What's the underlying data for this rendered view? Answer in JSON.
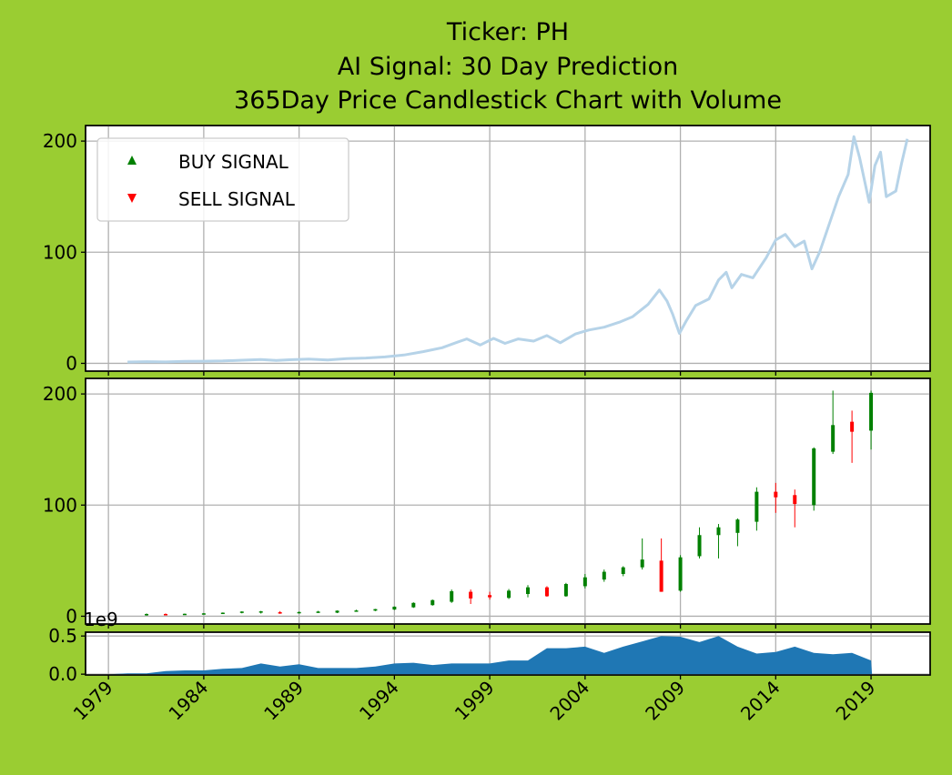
{
  "chart_data": {
    "type": "candlestick",
    "title_lines": [
      "Ticker: PH",
      "AI Signal: 30 Day Prediction",
      "365Day Price Candlestick Chart with Volume"
    ],
    "legend": {
      "placement": "upper-left",
      "entries": [
        {
          "label": "BUY SIGNAL",
          "marker": "up-triangle",
          "color": "#008000"
        },
        {
          "label": "SELL SIGNAL",
          "marker": "down-triangle",
          "color": "#ff0000"
        }
      ]
    },
    "colors": {
      "price_line": "#b6d3e8",
      "up": "#008000",
      "down": "#ff0000",
      "volume": "#1f77b4"
    },
    "grid": true,
    "xlim": [
      1977.8,
      2022.1
    ],
    "x_ticks": [
      "1979",
      "1984",
      "1989",
      "1994",
      "1999",
      "2004",
      "2009",
      "2014",
      "2019"
    ],
    "price_panel": {
      "ylim": [
        -7,
        214
      ],
      "y_ticks": [
        "0",
        "100",
        "200"
      ]
    },
    "volume_panel": {
      "ylim": [
        -0.01,
        0.55
      ],
      "y_ticks": [
        "0.0",
        "0.5"
      ],
      "offset_label": "1e9"
    },
    "price_line": [
      [
        1980.0,
        1.2
      ],
      [
        1981.0,
        1.5
      ],
      [
        1982.0,
        1.3
      ],
      [
        1983.0,
        1.8
      ],
      [
        1984.0,
        1.9
      ],
      [
        1985.0,
        2.2
      ],
      [
        1986.0,
        2.8
      ],
      [
        1987.0,
        3.5
      ],
      [
        1987.8,
        2.6
      ],
      [
        1988.5,
        3.2
      ],
      [
        1989.5,
        3.8
      ],
      [
        1990.5,
        3.0
      ],
      [
        1991.5,
        4.2
      ],
      [
        1992.5,
        4.8
      ],
      [
        1993.5,
        5.8
      ],
      [
        1994.5,
        7.5
      ],
      [
        1995.5,
        10.5
      ],
      [
        1996.5,
        14.0
      ],
      [
        1997.3,
        19.0
      ],
      [
        1997.8,
        22.0
      ],
      [
        1998.5,
        16.5
      ],
      [
        1999.2,
        22.5
      ],
      [
        1999.8,
        18.0
      ],
      [
        2000.5,
        22.0
      ],
      [
        2001.3,
        20.0
      ],
      [
        2002.0,
        25.0
      ],
      [
        2002.7,
        18.5
      ],
      [
        2003.5,
        26.5
      ],
      [
        2004.2,
        30.0
      ],
      [
        2005.0,
        32.5
      ],
      [
        2005.8,
        37.0
      ],
      [
        2006.5,
        42.0
      ],
      [
        2007.3,
        53.0
      ],
      [
        2007.9,
        66.0
      ],
      [
        2008.3,
        56.0
      ],
      [
        2008.6,
        44.0
      ],
      [
        2008.95,
        27.0
      ],
      [
        2009.3,
        38.0
      ],
      [
        2009.8,
        52.0
      ],
      [
        2010.5,
        58.0
      ],
      [
        2011.0,
        75.0
      ],
      [
        2011.4,
        82.0
      ],
      [
        2011.7,
        68.0
      ],
      [
        2012.2,
        80.0
      ],
      [
        2012.8,
        77.0
      ],
      [
        2013.5,
        95.0
      ],
      [
        2014.0,
        111.0
      ],
      [
        2014.5,
        116.0
      ],
      [
        2015.0,
        105.0
      ],
      [
        2015.5,
        110.0
      ],
      [
        2015.9,
        85.0
      ],
      [
        2016.3,
        100.0
      ],
      [
        2016.8,
        125.0
      ],
      [
        2017.3,
        150.0
      ],
      [
        2017.8,
        170.0
      ],
      [
        2018.1,
        204.0
      ],
      [
        2018.4,
        185.0
      ],
      [
        2018.9,
        145.0
      ],
      [
        2019.2,
        178.0
      ],
      [
        2019.5,
        190.0
      ],
      [
        2019.8,
        150.0
      ],
      [
        2020.3,
        155.0
      ],
      [
        2020.6,
        180.0
      ],
      [
        2020.9,
        202.0
      ]
    ],
    "candles": [
      {
        "x": 1981,
        "open": 1.0,
        "high": 2.5,
        "low": 0.5,
        "close": 2.0
      },
      {
        "x": 1982,
        "open": 2.0,
        "high": 2.5,
        "low": 1.0,
        "close": 1.5
      },
      {
        "x": 1983,
        "open": 1.6,
        "high": 2.4,
        "low": 1.2,
        "close": 2.2
      },
      {
        "x": 1984,
        "open": 2.2,
        "high": 2.8,
        "low": 1.8,
        "close": 2.6
      },
      {
        "x": 1985,
        "open": 2.6,
        "high": 3.4,
        "low": 2.2,
        "close": 3.2
      },
      {
        "x": 1986,
        "open": 3.0,
        "high": 4.4,
        "low": 2.6,
        "close": 4.2
      },
      {
        "x": 1987,
        "open": 3.6,
        "high": 4.8,
        "low": 2.4,
        "close": 4.4
      },
      {
        "x": 1988,
        "open": 3.6,
        "high": 4.6,
        "low": 2.2,
        "close": 2.8
      },
      {
        "x": 1989,
        "open": 2.8,
        "high": 4.2,
        "low": 2.4,
        "close": 3.8
      },
      {
        "x": 1990,
        "open": 3.6,
        "high": 4.8,
        "low": 3.0,
        "close": 4.2
      },
      {
        "x": 1991,
        "open": 3.2,
        "high": 5.2,
        "low": 2.8,
        "close": 5.0
      },
      {
        "x": 1992,
        "open": 4.6,
        "high": 5.8,
        "low": 4.2,
        "close": 5.2
      },
      {
        "x": 1993,
        "open": 5.0,
        "high": 6.6,
        "low": 4.6,
        "close": 6.4
      },
      {
        "x": 1994,
        "open": 6.0,
        "high": 8.8,
        "low": 5.6,
        "close": 8.6
      },
      {
        "x": 1995,
        "open": 8.0,
        "high": 12.5,
        "low": 7.5,
        "close": 12.0
      },
      {
        "x": 1996,
        "open": 10.0,
        "high": 15.0,
        "low": 9.5,
        "close": 14.5
      },
      {
        "x": 1997,
        "open": 13.0,
        "high": 24.0,
        "low": 12.0,
        "close": 22.5
      },
      {
        "x": 1998,
        "open": 22.0,
        "high": 24.0,
        "low": 11.0,
        "close": 16.0
      },
      {
        "x": 1999,
        "open": 19.0,
        "high": 22.0,
        "low": 15.0,
        "close": 17.0
      },
      {
        "x": 2000,
        "open": 16.5,
        "high": 24.5,
        "low": 15.5,
        "close": 23.0
      },
      {
        "x": 2001,
        "open": 20.0,
        "high": 28.0,
        "low": 17.0,
        "close": 26.0
      },
      {
        "x": 2002,
        "open": 26.0,
        "high": 27.0,
        "low": 17.5,
        "close": 18.0
      },
      {
        "x": 2003,
        "open": 18.0,
        "high": 30.0,
        "low": 17.5,
        "close": 29.0
      },
      {
        "x": 2004,
        "open": 27.0,
        "high": 38.0,
        "low": 25.0,
        "close": 35.0
      },
      {
        "x": 2005,
        "open": 33.0,
        "high": 42.0,
        "low": 31.0,
        "close": 40.0
      },
      {
        "x": 2006,
        "open": 38.0,
        "high": 45.0,
        "low": 36.0,
        "close": 44.0
      },
      {
        "x": 2007,
        "open": 44.0,
        "high": 70.0,
        "low": 42.0,
        "close": 51.0
      },
      {
        "x": 2008,
        "open": 50.0,
        "high": 70.0,
        "low": 22.0,
        "close": 22.0
      },
      {
        "x": 2009,
        "open": 23.0,
        "high": 55.0,
        "low": 22.0,
        "close": 53.0
      },
      {
        "x": 2010,
        "open": 54.0,
        "high": 80.0,
        "low": 52.0,
        "close": 73.0
      },
      {
        "x": 2011,
        "open": 73.0,
        "high": 83.0,
        "low": 52.0,
        "close": 80.0
      },
      {
        "x": 2012,
        "open": 75.0,
        "high": 88.0,
        "low": 63.0,
        "close": 87.0
      },
      {
        "x": 2013,
        "open": 85.0,
        "high": 116.0,
        "low": 77.0,
        "close": 112.0
      },
      {
        "x": 2014,
        "open": 112.0,
        "high": 120.0,
        "low": 93.0,
        "close": 107.0
      },
      {
        "x": 2015,
        "open": 109.0,
        "high": 114.0,
        "low": 80.0,
        "close": 101.0
      },
      {
        "x": 2016,
        "open": 100.0,
        "high": 152.0,
        "low": 95.0,
        "close": 151.0
      },
      {
        "x": 2017,
        "open": 148.0,
        "high": 203.0,
        "low": 146.0,
        "close": 172.0
      },
      {
        "x": 2018,
        "open": 175.0,
        "high": 185.0,
        "low": 138.0,
        "close": 166.0
      },
      {
        "x": 2019,
        "open": 167.0,
        "high": 203.0,
        "low": 150.0,
        "close": 201.0
      }
    ],
    "volume": {
      "x": [
        1979,
        1980,
        1981,
        1982,
        1983,
        1984,
        1985,
        1986,
        1987,
        1988,
        1989,
        1990,
        1991,
        1992,
        1993,
        1994,
        1995,
        1996,
        1997,
        1998,
        1999,
        2000,
        2001,
        2002,
        2003,
        2004,
        2005,
        2006,
        2007,
        2008,
        2009,
        2010,
        2011,
        2012,
        2013,
        2014,
        2015,
        2016,
        2017,
        2018,
        2019,
        2019.05,
        2022.1
      ],
      "values": [
        0.0,
        0.01,
        0.01,
        0.04,
        0.05,
        0.05,
        0.07,
        0.08,
        0.14,
        0.1,
        0.13,
        0.08,
        0.08,
        0.08,
        0.1,
        0.14,
        0.15,
        0.12,
        0.14,
        0.14,
        0.14,
        0.18,
        0.18,
        0.34,
        0.34,
        0.36,
        0.28,
        0.36,
        0.43,
        0.5,
        0.49,
        0.42,
        0.5,
        0.36,
        0.27,
        0.29,
        0.36,
        0.28,
        0.26,
        0.28,
        0.18,
        0.0,
        0.0
      ]
    }
  }
}
